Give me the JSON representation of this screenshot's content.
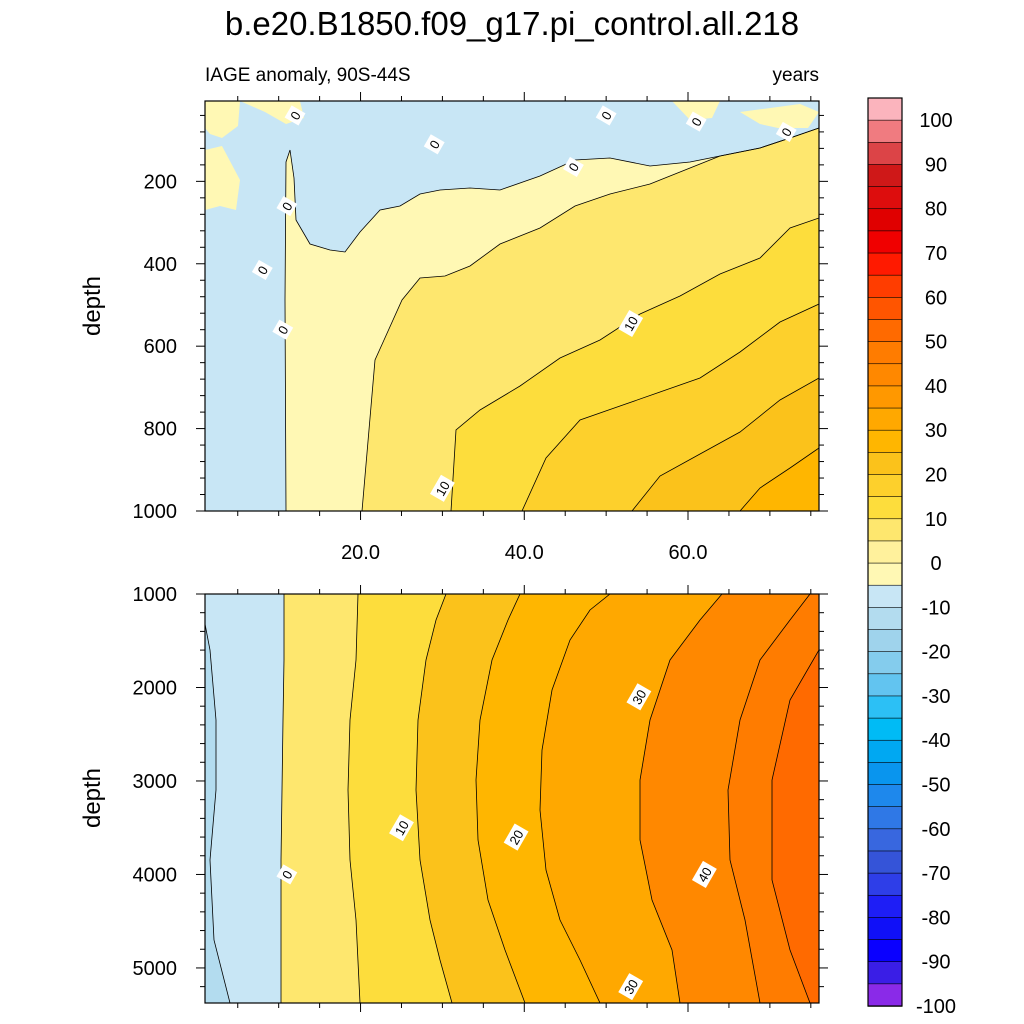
{
  "figure": {
    "title": "b.e20.B1850.f09_g17.pi_control.all.218",
    "subtitle_left": "IAGE anomaly, 90S-44S",
    "subtitle_right": "years"
  },
  "chart_data": [
    {
      "type": "heatmap",
      "panel": "upper",
      "title": "b.e20.B1850.f09_g17.pi_control.all.218",
      "subtitle_left": "IAGE anomaly, 90S-44S",
      "subtitle_right": "years",
      "xlabel": "",
      "ylabel": "depth",
      "xlim": [
        1,
        76
      ],
      "ylim": [
        1000,
        5
      ],
      "xticks": [
        20,
        40,
        60
      ],
      "xtick_labels": [
        "20.0",
        "40.0",
        "60.0"
      ],
      "yticks": [
        200,
        400,
        600,
        800,
        1000
      ],
      "ytick_labels": [
        "200",
        "400",
        "600",
        "800",
        "1000"
      ],
      "contour_interval": 5,
      "contour_labels": [
        {
          "text": "0",
          "x": 12,
          "y": 40
        },
        {
          "text": "0",
          "x": 29,
          "y": 110
        },
        {
          "text": "0",
          "x": 50,
          "y": 40
        },
        {
          "text": "0",
          "x": 61,
          "y": 55
        },
        {
          "text": "0",
          "x": 72,
          "y": 80
        },
        {
          "text": "0",
          "x": 46,
          "y": 165
        },
        {
          "text": "0",
          "x": 11,
          "y": 260
        },
        {
          "text": "0",
          "x": 8,
          "y": 415
        },
        {
          "text": "0",
          "x": 10.5,
          "y": 560
        },
        {
          "text": "10",
          "x": 53,
          "y": 545
        },
        {
          "text": "10",
          "x": 30,
          "y": 945
        }
      ]
    },
    {
      "type": "heatmap",
      "panel": "lower",
      "xlabel": "",
      "ylabel": "depth",
      "xlim": [
        1,
        76
      ],
      "ylim": [
        1000,
        5375
      ],
      "yticks": [
        1000,
        2000,
        3000,
        4000,
        5000
      ],
      "ytick_labels": [
        "1000",
        "2000",
        "3000",
        "4000",
        "5000"
      ],
      "contour_interval": 5,
      "contour_labels": [
        {
          "text": "30",
          "x": 54,
          "y": 2100
        },
        {
          "text": "10",
          "x": 25,
          "y": 3500
        },
        {
          "text": "20",
          "x": 39,
          "y": 3600
        },
        {
          "text": "40",
          "x": 62,
          "y": 4000
        },
        {
          "text": "0",
          "x": 11,
          "y": 4000
        },
        {
          "text": "30",
          "x": 53,
          "y": 5200
        }
      ]
    },
    {
      "type": "colorbar",
      "levels": [
        -100,
        -95,
        -90,
        -85,
        -80,
        -75,
        -70,
        -65,
        -60,
        -55,
        -50,
        -45,
        -40,
        -35,
        -30,
        -25,
        -20,
        -15,
        -10,
        -5,
        0,
        5,
        10,
        15,
        20,
        25,
        30,
        35,
        40,
        45,
        50,
        55,
        60,
        65,
        70,
        75,
        80,
        85,
        90,
        95,
        100
      ],
      "labels": [
        "100",
        "90",
        "80",
        "70",
        "60",
        "50",
        "40",
        "30",
        "20",
        "10",
        "0",
        "-10",
        "-20",
        "-30",
        "-40",
        "-50",
        "-60",
        "-70",
        "-80",
        "-90",
        "-100"
      ],
      "colors_top_to_bottom": [
        "#fbb4bd",
        "#f07b80",
        "#dc4447",
        "#cf1818",
        "#dd0d0d",
        "#e00000",
        "#f00000",
        "#ff1a00",
        "#ff3d00",
        "#ff5500",
        "#ff6a00",
        "#ff7c00",
        "#ff8800",
        "#ff9800",
        "#ffa800",
        "#ffb600",
        "#fbc21b",
        "#fdd02c",
        "#fddd3c",
        "#fee76e",
        "#fff19c",
        "#fff8b4",
        "#c8e6f5",
        "#b3dcef",
        "#9fd3ec",
        "#84cced",
        "#62c4f0",
        "#2cc0f5",
        "#00bbf5",
        "#00a8f2",
        "#0995ee",
        "#1e88ec",
        "#2f78e6",
        "#3867df",
        "#3554d8",
        "#2e3ee8",
        "#1e1ef6",
        "#1010f8",
        "#0a00ff",
        "#3a1ee6",
        "#8a2ae8"
      ]
    }
  ]
}
